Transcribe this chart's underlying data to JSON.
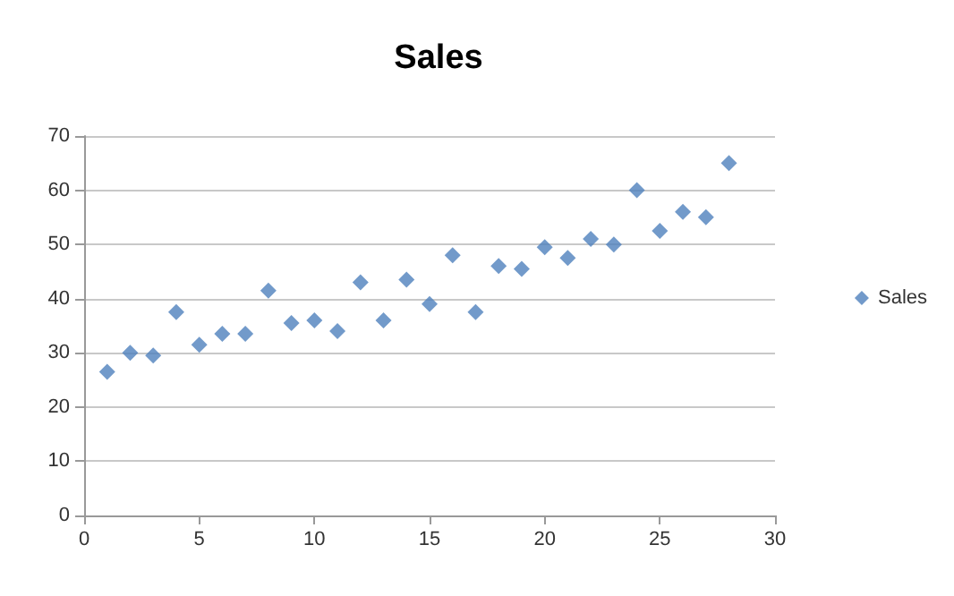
{
  "chart_data": {
    "type": "scatter",
    "title": "Sales",
    "x": [
      1,
      2,
      3,
      4,
      5,
      6,
      7,
      8,
      9,
      10,
      11,
      12,
      13,
      14,
      15,
      16,
      17,
      18,
      19,
      20,
      21,
      22,
      23,
      24,
      25,
      26,
      27,
      28
    ],
    "series": [
      {
        "name": "Sales",
        "color": "#4f81bd",
        "values": [
          26.5,
          30,
          29.5,
          37.5,
          31.5,
          33.5,
          33.5,
          41.5,
          35.5,
          36,
          34,
          43,
          36,
          43.5,
          39,
          48,
          37.5,
          46,
          45.5,
          49.5,
          47.5,
          51,
          50,
          60,
          52.5,
          56,
          55,
          65
        ]
      }
    ],
    "xlim": [
      0,
      30
    ],
    "xticks": [
      0,
      5,
      10,
      15,
      20,
      25,
      30
    ],
    "ylim": [
      0,
      70
    ],
    "yticks": [
      0,
      10,
      20,
      30,
      40,
      50,
      60,
      70
    ],
    "grid": "y",
    "legend": "right",
    "marker": "diamond"
  }
}
